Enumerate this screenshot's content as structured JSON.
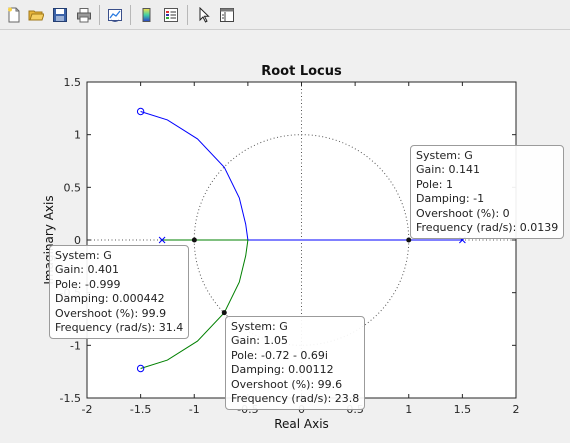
{
  "toolbar": {
    "buttons": [
      {
        "name": "new-figure-icon"
      },
      {
        "name": "open-file-icon"
      },
      {
        "name": "save-figure-icon"
      },
      {
        "name": "print-figure-icon"
      },
      {
        "name": "link-plot-icon"
      },
      {
        "name": "insert-colorbar-icon"
      },
      {
        "name": "insert-legend-icon"
      },
      {
        "name": "edit-plot-icon"
      },
      {
        "name": "property-inspector-icon"
      }
    ]
  },
  "chart_data": {
    "type": "line",
    "title": "Root Locus",
    "xlabel": "Real Axis",
    "ylabel": "Imaginary Axis",
    "xlim": [
      -2,
      2
    ],
    "ylim": [
      -1.5,
      1.5
    ],
    "xticks": [
      "-2",
      "-1.5",
      "-1",
      "-0.5",
      "0",
      "0.5",
      "1",
      "1.5",
      "2"
    ],
    "yticks": [
      "1.5",
      "1",
      "0.5",
      "0",
      "-0.5",
      "-1",
      "-1.5"
    ],
    "grid": "unit circle and axes dotted",
    "poles": [
      [
        -1.3,
        0
      ],
      [
        1.5,
        0
      ]
    ],
    "zeros": [
      [
        -1.5,
        1.22
      ],
      [
        -1.5,
        -1.22
      ]
    ],
    "series": [
      {
        "color": "#0000ff",
        "x": [
          -1.5,
          -1.25,
          -0.97,
          -0.72,
          -0.58,
          -0.52,
          -0.5,
          -1.3,
          -0.5,
          1.5
        ],
        "y": [
          1.22,
          1.14,
          0.96,
          0.69,
          0.4,
          0.15,
          0,
          0,
          0,
          0
        ]
      },
      {
        "color": "#008000",
        "x": [
          -1.5,
          -1.25,
          -0.97,
          -0.72,
          -0.58,
          -0.52,
          -0.5,
          -1.3,
          -0.5
        ],
        "y": [
          -1.22,
          -1.14,
          -0.96,
          -0.69,
          -0.4,
          -0.15,
          0,
          0,
          0
        ]
      }
    ],
    "markers": [
      [
        -0.999,
        0
      ],
      [
        -0.72,
        -0.69
      ],
      [
        1.0,
        0
      ]
    ],
    "datatips": [
      {
        "lines": [
          "System: G",
          "Gain: 0.141",
          "Pole: 1",
          "Damping: -1",
          "Overshoot (%): 0",
          "Frequency (rad/s): 0.0139"
        ]
      },
      {
        "lines": [
          "System: G",
          "Gain: 0.401",
          "Pole: -0.999",
          "Damping: 0.000442",
          "Overshoot (%): 99.9",
          "Frequency (rad/s): 31.4"
        ]
      },
      {
        "lines": [
          "System: G",
          "Gain: 1.05",
          "Pole: -0.72 - 0.69i",
          "Damping: 0.00112",
          "Overshoot (%): 99.6",
          "Frequency (rad/s): 23.8"
        ]
      }
    ]
  }
}
